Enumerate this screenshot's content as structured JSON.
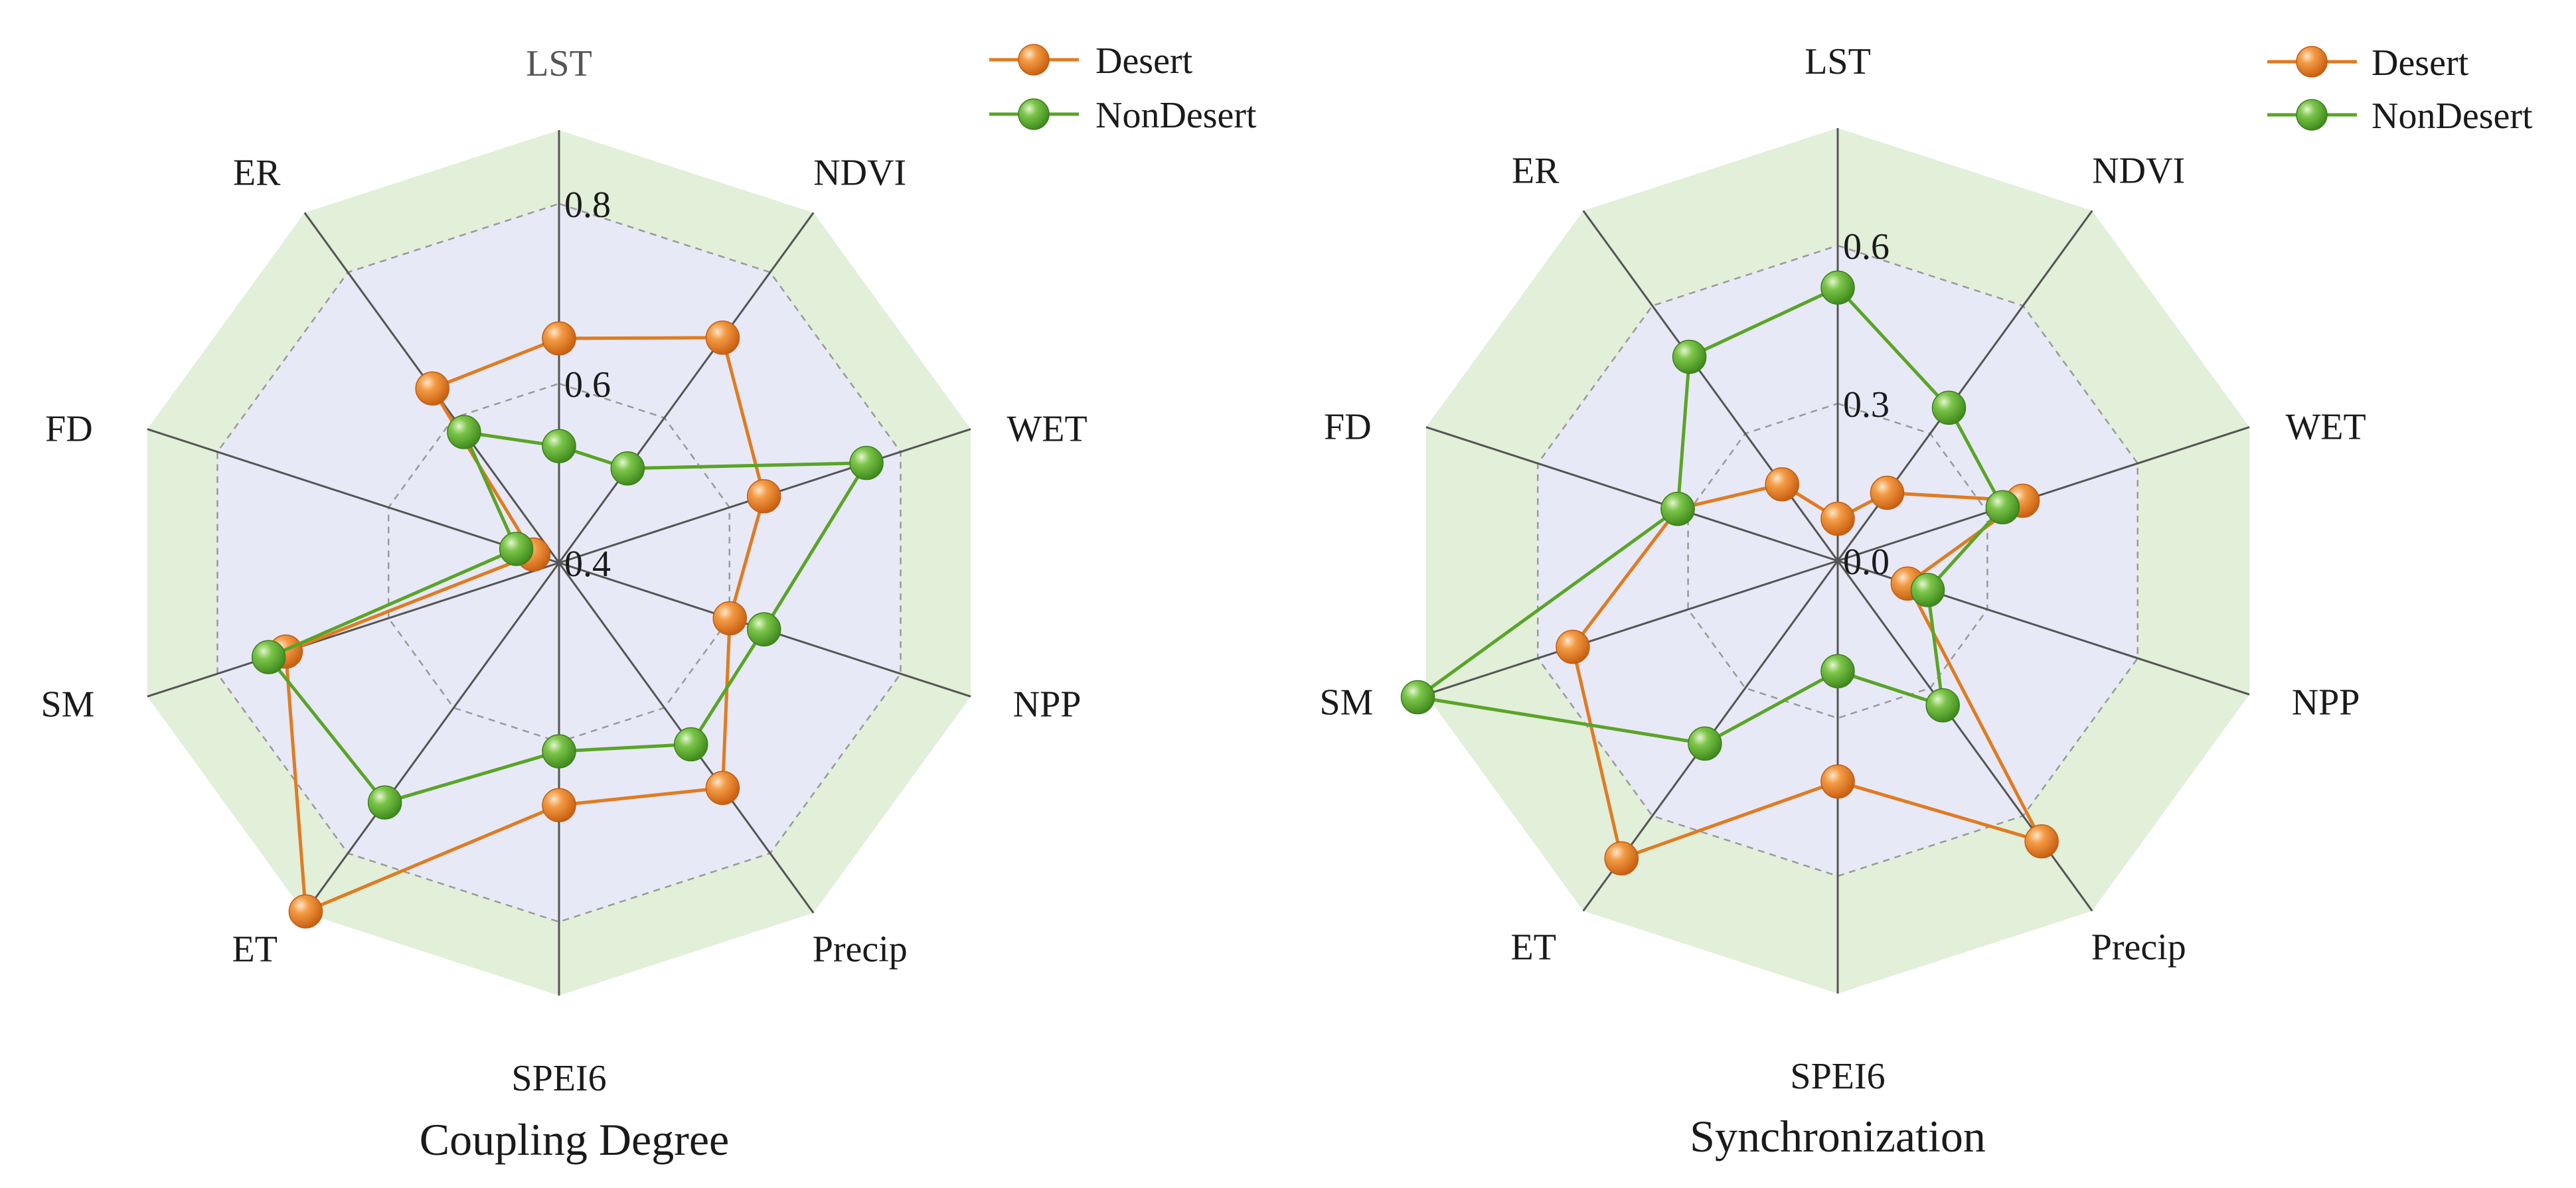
{
  "colors": {
    "outer_fill": "#e2efd9",
    "inner_fill": "#e8e9f6",
    "spoke": "#555555",
    "grid": "#9a9a9a",
    "desert": "#e8822a",
    "desert_line": "#e07b22",
    "nondesert": "#6ab63a",
    "nondesert_line": "#5aa428"
  },
  "chart_data": [
    {
      "type": "radar",
      "title": "Coupling Degree",
      "axes": [
        "LST",
        "NDVI",
        "WET",
        "NPP",
        "Precip",
        "SPEI6",
        "ET",
        "SM",
        "FD",
        "ER"
      ],
      "tick_labels": [
        "0.4",
        "0.6",
        "0.8"
      ],
      "series": [
        {
          "name": "Desert",
          "values": [
            0.65,
            0.71,
            0.64,
            0.6,
            0.71,
            0.67,
            0.88,
            0.72,
            0.43,
            0.64
          ]
        },
        {
          "name": "NonDesert",
          "values": [
            0.53,
            0.53,
            0.76,
            0.64,
            0.65,
            0.61,
            0.73,
            0.74,
            0.45,
            0.58
          ]
        }
      ],
      "legend": [
        "Desert",
        "NonDesert"
      ],
      "legend_position": "top-right",
      "grid": true
    },
    {
      "type": "radar",
      "title": "Synchronization",
      "axes": [
        "LST",
        "NDVI",
        "WET",
        "NPP",
        "Precip",
        "SPEI6",
        "ET",
        "SM",
        "FD",
        "ER"
      ],
      "tick_labels": [
        "0.0",
        "0.3",
        "0.6"
      ],
      "series": [
        {
          "name": "Desert",
          "values": [
            0.08,
            0.16,
            0.37,
            0.14,
            0.66,
            0.42,
            0.7,
            0.53,
            0.32,
            0.18
          ]
        },
        {
          "name": "NonDesert",
          "values": [
            0.52,
            0.36,
            0.33,
            0.18,
            0.34,
            0.21,
            0.43,
            0.84,
            0.32,
            0.48
          ]
        }
      ],
      "legend": [
        "Desert",
        "NonDesert"
      ],
      "legend_position": "top-right",
      "grid": true
    }
  ]
}
